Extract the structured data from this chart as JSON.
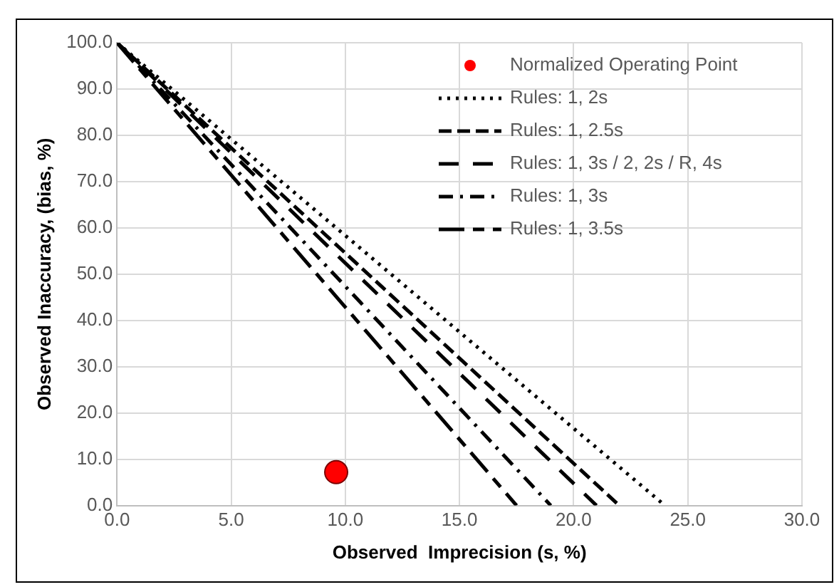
{
  "chart_data": {
    "type": "line",
    "xlabel": "Observed  Imprecision (s, %)",
    "ylabel": "Observed Inaccuracy, (bias, %)",
    "xlim": [
      0,
      30
    ],
    "xticks": [
      {
        "value": 0,
        "label": "0.0"
      },
      {
        "value": 5,
        "label": "5.0"
      },
      {
        "value": 10,
        "label": "10.0"
      },
      {
        "value": 15,
        "label": "15.0"
      },
      {
        "value": 20,
        "label": "20.0"
      },
      {
        "value": 25,
        "label": "25.0"
      },
      {
        "value": 30,
        "label": "30.0"
      }
    ],
    "ylim": [
      0,
      100
    ],
    "yticks": [
      {
        "value": 0,
        "label": "0.0"
      },
      {
        "value": 10,
        "label": "10.0"
      },
      {
        "value": 20,
        "label": "20.0"
      },
      {
        "value": 30,
        "label": "30.0"
      },
      {
        "value": 40,
        "label": "40.0"
      },
      {
        "value": 50,
        "label": "50.0"
      },
      {
        "value": 60,
        "label": "60.0"
      },
      {
        "value": 70,
        "label": "70.0"
      },
      {
        "value": 80,
        "label": "80.0"
      },
      {
        "value": 90,
        "label": "90.0"
      },
      {
        "value": 100,
        "label": "100.0"
      }
    ],
    "grid": true,
    "legend": "top right",
    "series": [
      {
        "name": "Normalized Operating Point",
        "type": "scatter",
        "marker": "circle",
        "color": "#ff0000",
        "x": [
          9.6
        ],
        "values": [
          7.2
        ]
      },
      {
        "name": "Rules: 1, 2s",
        "line_style": "dotted",
        "color": "#000000",
        "x": [
          0,
          24
        ],
        "values": [
          100,
          0
        ]
      },
      {
        "name": "Rules: 1, 2.5s",
        "line_style": "dashed",
        "color": "#000000",
        "x": [
          0,
          22
        ],
        "values": [
          100,
          0
        ]
      },
      {
        "name": "Rules: 1, 3s / 2, 2s / R, 4s",
        "line_style": "dashed",
        "color": "#000000",
        "x": [
          0,
          21
        ],
        "values": [
          100,
          0
        ]
      },
      {
        "name": "Rules: 1, 3s",
        "line_style": "dashed",
        "color": "#000000",
        "x": [
          0,
          19
        ],
        "values": [
          100,
          0
        ]
      },
      {
        "name": "Rules: 1, 3.5s",
        "line_style": "dashed",
        "color": "#000000",
        "x": [
          0,
          17.5
        ],
        "values": [
          100,
          0
        ]
      }
    ]
  }
}
